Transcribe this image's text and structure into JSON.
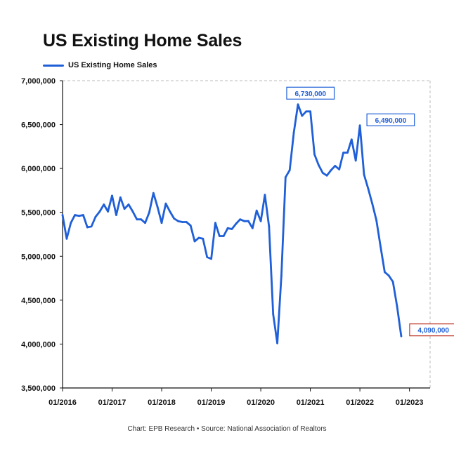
{
  "chart_data": {
    "type": "line",
    "title": "US Existing Home Sales",
    "xlabel": "",
    "ylabel": "",
    "ylim": [
      3500000,
      7000000
    ],
    "xlim": [
      "2016-01",
      "2023-06"
    ],
    "grid": false,
    "legend_position": "top-left",
    "x_tick_labels": [
      "01/2016",
      "01/2017",
      "01/2018",
      "01/2019",
      "01/2020",
      "01/2021",
      "01/2022",
      "01/2023"
    ],
    "y_tick_labels": [
      "3,500,000",
      "4,000,000",
      "4,500,000",
      "5,000,000",
      "5,500,000",
      "6,000,000",
      "6,500,000",
      "7,000,000"
    ],
    "y_ticks": [
      3500000,
      4000000,
      4500000,
      5000000,
      5500000,
      6000000,
      6500000,
      7000000
    ],
    "series": [
      {
        "name": "US Existing Home Sales",
        "color": "#1f5fd8",
        "points": [
          [
            "2016-01",
            5470000
          ],
          [
            "2016-02",
            5200000
          ],
          [
            "2016-03",
            5380000
          ],
          [
            "2016-04",
            5470000
          ],
          [
            "2016-05",
            5460000
          ],
          [
            "2016-06",
            5470000
          ],
          [
            "2016-07",
            5330000
          ],
          [
            "2016-08",
            5340000
          ],
          [
            "2016-09",
            5450000
          ],
          [
            "2016-10",
            5510000
          ],
          [
            "2016-11",
            5590000
          ],
          [
            "2016-12",
            5510000
          ],
          [
            "2017-01",
            5690000
          ],
          [
            "2017-02",
            5470000
          ],
          [
            "2017-03",
            5670000
          ],
          [
            "2017-04",
            5540000
          ],
          [
            "2017-05",
            5590000
          ],
          [
            "2017-06",
            5510000
          ],
          [
            "2017-07",
            5420000
          ],
          [
            "2017-08",
            5420000
          ],
          [
            "2017-09",
            5380000
          ],
          [
            "2017-10",
            5500000
          ],
          [
            "2017-11",
            5720000
          ],
          [
            "2017-12",
            5560000
          ],
          [
            "2018-01",
            5380000
          ],
          [
            "2018-02",
            5600000
          ],
          [
            "2018-03",
            5510000
          ],
          [
            "2018-04",
            5430000
          ],
          [
            "2018-05",
            5400000
          ],
          [
            "2018-06",
            5390000
          ],
          [
            "2018-07",
            5390000
          ],
          [
            "2018-08",
            5350000
          ],
          [
            "2018-09",
            5170000
          ],
          [
            "2018-10",
            5210000
          ],
          [
            "2018-11",
            5200000
          ],
          [
            "2018-12",
            4990000
          ],
          [
            "2019-01",
            4970000
          ],
          [
            "2019-02",
            5380000
          ],
          [
            "2019-03",
            5230000
          ],
          [
            "2019-04",
            5230000
          ],
          [
            "2019-05",
            5320000
          ],
          [
            "2019-06",
            5310000
          ],
          [
            "2019-07",
            5370000
          ],
          [
            "2019-08",
            5420000
          ],
          [
            "2019-09",
            5400000
          ],
          [
            "2019-10",
            5400000
          ],
          [
            "2019-11",
            5320000
          ],
          [
            "2019-12",
            5520000
          ],
          [
            "2020-01",
            5400000
          ],
          [
            "2020-02",
            5700000
          ],
          [
            "2020-03",
            5340000
          ],
          [
            "2020-04",
            4340000
          ],
          [
            "2020-05",
            4010000
          ],
          [
            "2020-06",
            4780000
          ],
          [
            "2020-07",
            5900000
          ],
          [
            "2020-08",
            5980000
          ],
          [
            "2020-09",
            6410000
          ],
          [
            "2020-10",
            6730000
          ],
          [
            "2020-11",
            6600000
          ],
          [
            "2020-12",
            6650000
          ],
          [
            "2021-01",
            6650000
          ],
          [
            "2021-02",
            6160000
          ],
          [
            "2021-03",
            6040000
          ],
          [
            "2021-04",
            5950000
          ],
          [
            "2021-05",
            5920000
          ],
          [
            "2021-06",
            5980000
          ],
          [
            "2021-07",
            6030000
          ],
          [
            "2021-08",
            5990000
          ],
          [
            "2021-09",
            6180000
          ],
          [
            "2021-10",
            6180000
          ],
          [
            "2021-11",
            6330000
          ],
          [
            "2021-12",
            6090000
          ],
          [
            "2022-01",
            6490000
          ],
          [
            "2022-02",
            5930000
          ],
          [
            "2022-03",
            5770000
          ],
          [
            "2022-04",
            5600000
          ],
          [
            "2022-05",
            5410000
          ],
          [
            "2022-06",
            5110000
          ],
          [
            "2022-07",
            4820000
          ],
          [
            "2022-08",
            4780000
          ],
          [
            "2022-09",
            4710000
          ],
          [
            "2022-10",
            4430000
          ],
          [
            "2022-11",
            4090000
          ]
        ]
      }
    ],
    "annotations": [
      {
        "text": "6,730,000",
        "x": "2020-10",
        "y": 6730000,
        "border_color": "#1f5fd8",
        "text_color": "#1f5fd8"
      },
      {
        "text": "6,490,000",
        "x": "2022-01",
        "y": 6490000,
        "border_color": "#1f5fd8",
        "text_color": "#1f5fd8"
      },
      {
        "text": "4,090,000",
        "x": "2022-11",
        "y": 4090000,
        "border_color": "#c0392b",
        "text_color": "#1f5fd8"
      }
    ]
  },
  "footer": {
    "credit": "Chart: EPB Research",
    "separator": "•",
    "source": "Source: National Association of Realtors"
  }
}
